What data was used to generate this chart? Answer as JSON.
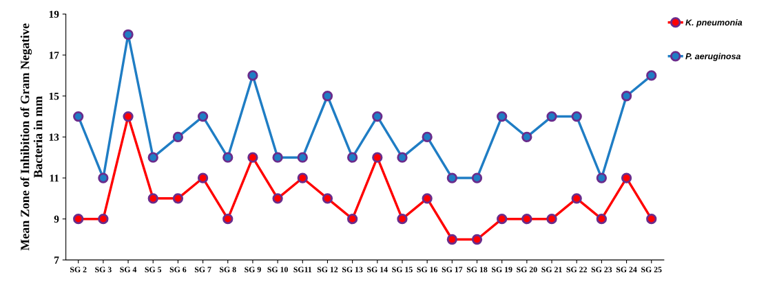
{
  "chart_data": {
    "type": "line",
    "ylabel": "Mean Zone of Inhibition of Gram Negative\nBacteria in mm",
    "categories": [
      "SG 2",
      "SG 3",
      "SG 4",
      "SG 5",
      "SG 6",
      "SG 7",
      "SG 8",
      "SG 9",
      "SG 10",
      "SG11",
      "SG 12",
      "SG 13",
      "SG 14",
      "SG 15",
      "SG 16",
      "SG 17",
      "SG 18",
      "SG 19",
      "SG 20",
      "SG 21",
      "SG 22",
      "SG 23",
      "SG 24",
      "SG 25"
    ],
    "series": [
      {
        "name": "K. pneumonia",
        "color": "#ff0000",
        "values": [
          9,
          9,
          14,
          10,
          10,
          11,
          9,
          12,
          10,
          11,
          10,
          9,
          12,
          9,
          10,
          8,
          8,
          9,
          9,
          9,
          10,
          9,
          11,
          9
        ]
      },
      {
        "name": "P. aeruginosa",
        "color": "#1f7dc4",
        "values": [
          14,
          11,
          18,
          12,
          13,
          14,
          12,
          16,
          12,
          12,
          15,
          12,
          14,
          12,
          13,
          11,
          11,
          14,
          13,
          14,
          14,
          11,
          15,
          16
        ]
      }
    ],
    "ylim": [
      7,
      19
    ],
    "yticks": [
      7,
      9,
      11,
      13,
      15,
      17,
      19
    ],
    "grid": false,
    "legend": "top right",
    "marker": "circle",
    "line_style": "solid"
  }
}
